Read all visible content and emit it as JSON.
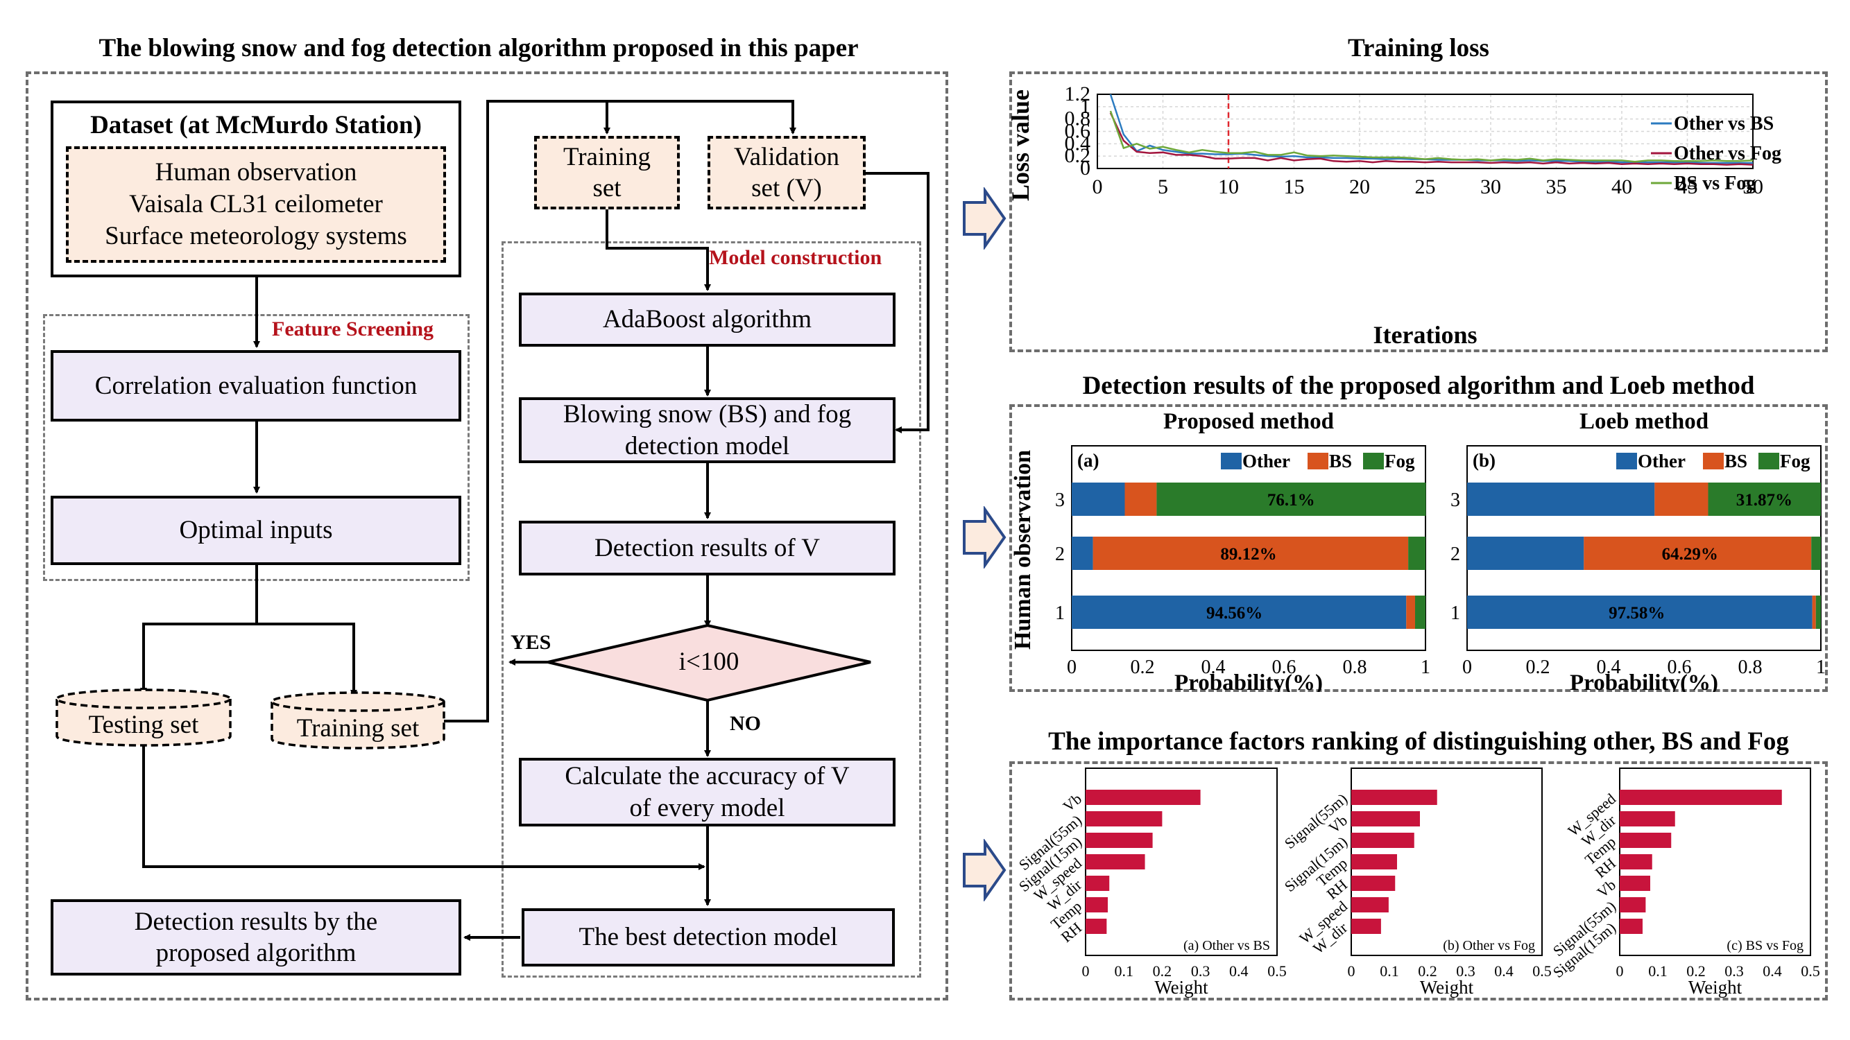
{
  "left": {
    "title": "The blowing snow and fog detection algorithm proposed in this paper",
    "dataset": {
      "title": "Dataset (at McMurdo Station)",
      "sources": [
        "Human observation",
        "Vaisala CL31 ceilometer",
        "Surface meteorology systems"
      ]
    },
    "feature_screening_label": "Feature Screening",
    "correlation": "Correlation evaluation function",
    "optimal_inputs": "Optimal inputs",
    "testing_set": "Testing set",
    "training_set_db": "Training set",
    "training_set_top": [
      "Training",
      "set"
    ],
    "validation_set": [
      "Validation",
      "set (V)"
    ],
    "model_construction_label": "Model construction",
    "adaboost": "AdaBoost algorithm",
    "bs_model": [
      "Blowing snow (BS) and fog",
      "detection model"
    ],
    "detection_v": "Detection results of V",
    "decision": "i<100",
    "yes": "YES",
    "no": "NO",
    "accuracy": [
      "Calculate the accuracy of V",
      "of every model"
    ],
    "best_model": "The best detection model",
    "final_results": [
      "Detection results by the",
      "proposed algorithm"
    ]
  },
  "loss": {
    "title": "Training loss",
    "chart_data": {
      "type": "line",
      "xlabel": "Iterations",
      "ylabel": "Loss value",
      "xlim": [
        0,
        50
      ],
      "ylim": [
        0,
        1.2
      ],
      "xticks": [
        "0",
        "5",
        "10",
        "15",
        "20",
        "25",
        "30",
        "35",
        "40",
        "45",
        "50"
      ],
      "yticks": [
        "0",
        "0.2",
        "0.4",
        "0.6",
        "0.8",
        "1",
        "1.2"
      ],
      "vline_x": 10,
      "x": [
        1,
        2,
        3,
        4,
        5,
        6,
        7,
        8,
        9,
        10,
        11,
        12,
        13,
        14,
        15,
        16,
        17,
        18,
        19,
        20,
        21,
        22,
        23,
        24,
        25,
        26,
        27,
        28,
        29,
        30,
        31,
        32,
        33,
        34,
        35,
        36,
        37,
        38,
        39,
        40,
        41,
        42,
        43,
        44,
        45,
        46,
        47,
        48,
        49,
        50
      ],
      "series": [
        {
          "name": "Other vs BS",
          "color": "#2b7bc0",
          "values": [
            1.2,
            0.55,
            0.28,
            0.37,
            0.3,
            0.27,
            0.24,
            0.24,
            0.23,
            0.23,
            0.24,
            0.22,
            0.2,
            0.19,
            0.2,
            0.18,
            0.18,
            0.17,
            0.17,
            0.16,
            0.16,
            0.15,
            0.16,
            0.15,
            0.15,
            0.14,
            0.14,
            0.14,
            0.13,
            0.13,
            0.13,
            0.12,
            0.13,
            0.12,
            0.12,
            0.12,
            0.11,
            0.11,
            0.11,
            0.1,
            0.1,
            0.1,
            0.1,
            0.1,
            0.1,
            0.09,
            0.09,
            0.09,
            0.09,
            0.09
          ]
        },
        {
          "name": "Other vs Fog",
          "color": "#a3163e",
          "values": [
            0.9,
            0.45,
            0.27,
            0.25,
            0.26,
            0.22,
            0.22,
            0.2,
            0.16,
            0.16,
            0.17,
            0.17,
            0.13,
            0.17,
            0.13,
            0.15,
            0.16,
            0.12,
            0.11,
            0.12,
            0.1,
            0.12,
            0.11,
            0.11,
            0.1,
            0.11,
            0.1,
            0.1,
            0.1,
            0.09,
            0.1,
            0.09,
            0.1,
            0.08,
            0.1,
            0.08,
            0.09,
            0.08,
            0.09,
            0.07,
            0.08,
            0.07,
            0.08,
            0.07,
            0.08,
            0.07,
            0.07,
            0.06,
            0.07,
            0.06
          ]
        },
        {
          "name": "BS vs Fog",
          "color": "#6ea83a",
          "values": [
            0.93,
            0.33,
            0.4,
            0.32,
            0.35,
            0.3,
            0.26,
            0.3,
            0.27,
            0.25,
            0.25,
            0.27,
            0.22,
            0.22,
            0.26,
            0.21,
            0.2,
            0.21,
            0.2,
            0.19,
            0.18,
            0.18,
            0.18,
            0.17,
            0.15,
            0.17,
            0.15,
            0.14,
            0.15,
            0.13,
            0.15,
            0.14,
            0.16,
            0.13,
            0.15,
            0.14,
            0.13,
            0.13,
            0.13,
            0.13,
            0.11,
            0.13,
            0.13,
            0.12,
            0.12,
            0.12,
            0.13,
            0.12,
            0.12,
            0.13
          ]
        }
      ]
    }
  },
  "detection": {
    "title": "Detection results of the proposed algorithm and Loeb method",
    "ylabel": "Human observation",
    "chart_data": [
      {
        "type": "bar",
        "orientation": "horizontal",
        "stacked": true,
        "subtitle": "Proposed method",
        "panel": "(a)",
        "categories": [
          "1",
          "2",
          "3"
        ],
        "xlabel": "Probability(%)",
        "xlim": [
          0,
          1
        ],
        "xticks": [
          "0",
          "0.2",
          "0.4",
          "0.6",
          "0.8",
          "1"
        ],
        "series": [
          {
            "name": "Other",
            "color": "#1f63a5",
            "values": [
              0.9456,
              0.06,
              0.15
            ]
          },
          {
            "name": "BS",
            "color": "#d8541e",
            "values": [
              0.025,
              0.8912,
              0.09
            ]
          },
          {
            "name": "Fog",
            "color": "#2a7b2a",
            "values": [
              0.0294,
              0.0488,
              0.761
            ]
          }
        ],
        "labels": [
          {
            "row": 0,
            "text": "94.56%",
            "at": 0.46
          },
          {
            "row": 1,
            "text": "89.12%",
            "at": 0.5
          },
          {
            "row": 2,
            "text": "76.1%",
            "at": 0.62
          }
        ]
      },
      {
        "type": "bar",
        "orientation": "horizontal",
        "stacked": true,
        "subtitle": "Loeb method",
        "panel": "(b)",
        "categories": [
          "1",
          "2",
          "3"
        ],
        "xlabel": "Probability(%)",
        "xlim": [
          0,
          1
        ],
        "xticks": [
          "0",
          "0.2",
          "0.4",
          "0.6",
          "0.8",
          "1"
        ],
        "series": [
          {
            "name": "Other",
            "color": "#1f63a5",
            "values": [
              0.9758,
              0.33,
              0.53
            ]
          },
          {
            "name": "BS",
            "color": "#d8541e",
            "values": [
              0.01,
              0.6429,
              0.1513
            ]
          },
          {
            "name": "Fog",
            "color": "#2a7b2a",
            "values": [
              0.0142,
              0.0271,
              0.3187
            ]
          }
        ],
        "labels": [
          {
            "row": 0,
            "text": "97.58%",
            "at": 0.48
          },
          {
            "row": 1,
            "text": "64.29%",
            "at": 0.63
          },
          {
            "row": 2,
            "text": "31.87%",
            "at": 0.84
          }
        ]
      }
    ]
  },
  "importance": {
    "title": "The importance factors ranking of distinguishing other, BS and Fog",
    "chart_data": [
      {
        "type": "bar",
        "orientation": "horizontal",
        "panel": "(a) Other vs BS",
        "xlabel": "Weight",
        "xlim": [
          0,
          0.5
        ],
        "xticks": [
          "0",
          "0.1",
          "0.2",
          "0.3",
          "0.4",
          "0.5"
        ],
        "categories": [
          "Vb",
          "Signal(55m)",
          "Signal(15m)",
          "W_speed",
          "W_dir",
          "Temp",
          "RH"
        ],
        "values": [
          0.3,
          0.2,
          0.175,
          0.155,
          0.062,
          0.058,
          0.055
        ],
        "color": "#c8143c"
      },
      {
        "type": "bar",
        "orientation": "horizontal",
        "panel": "(b) Other vs Fog",
        "xlabel": "Weight",
        "xlim": [
          0,
          0.5
        ],
        "xticks": [
          "0",
          "0.1",
          "0.2",
          "0.3",
          "0.4",
          "0.5"
        ],
        "categories": [
          "Signal(55m)",
          "Vb",
          "Signal(15m)",
          "Temp",
          "RH",
          "W_speed",
          "W_dir"
        ],
        "values": [
          0.225,
          0.18,
          0.165,
          0.12,
          0.115,
          0.098,
          0.078
        ],
        "color": "#c8143c"
      },
      {
        "type": "bar",
        "orientation": "horizontal",
        "panel": "(c) BS vs Fog",
        "xlabel": "Weight",
        "xlim": [
          0,
          0.5
        ],
        "xticks": [
          "0",
          "0.1",
          "0.2",
          "0.3",
          "0.4",
          "0.5"
        ],
        "categories": [
          "W_speed",
          "W_dir",
          "Temp",
          "RH",
          "Vb",
          "Signal(55m)",
          "Signal(15m)"
        ],
        "values": [
          0.425,
          0.145,
          0.135,
          0.085,
          0.08,
          0.068,
          0.06
        ],
        "color": "#c8143c"
      }
    ]
  }
}
